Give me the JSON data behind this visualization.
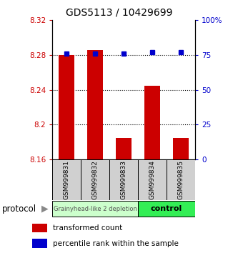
{
  "title": "GDS5113 / 10429699",
  "samples": [
    "GSM999831",
    "GSM999832",
    "GSM999833",
    "GSM999834",
    "GSM999835"
  ],
  "bar_values": [
    8.28,
    8.286,
    8.185,
    8.245,
    8.185
  ],
  "bar_base": 8.16,
  "percentile_values": [
    76,
    76,
    76,
    77,
    77
  ],
  "ylim_left": [
    8.16,
    8.32
  ],
  "ylim_right": [
    0,
    100
  ],
  "yticks_left": [
    8.16,
    8.2,
    8.24,
    8.28,
    8.32
  ],
  "yticks_right": [
    0,
    25,
    50,
    75,
    100
  ],
  "ytick_labels_right": [
    "0",
    "25",
    "50",
    "75",
    "100%"
  ],
  "bar_color": "#cc0000",
  "percentile_color": "#0000cc",
  "group1_label": "Grainyhead-like 2 depletion",
  "group2_label": "control",
  "group1_color": "#ccffcc",
  "group2_color": "#33ee55",
  "group1_samples": [
    0,
    1,
    2
  ],
  "group2_samples": [
    3,
    4
  ],
  "protocol_label": "protocol",
  "legend_bar_label": "transformed count",
  "legend_pct_label": "percentile rank within the sample",
  "bar_width": 0.55,
  "label_box_color": "#d0d0d0",
  "arrow_color": "#888888"
}
